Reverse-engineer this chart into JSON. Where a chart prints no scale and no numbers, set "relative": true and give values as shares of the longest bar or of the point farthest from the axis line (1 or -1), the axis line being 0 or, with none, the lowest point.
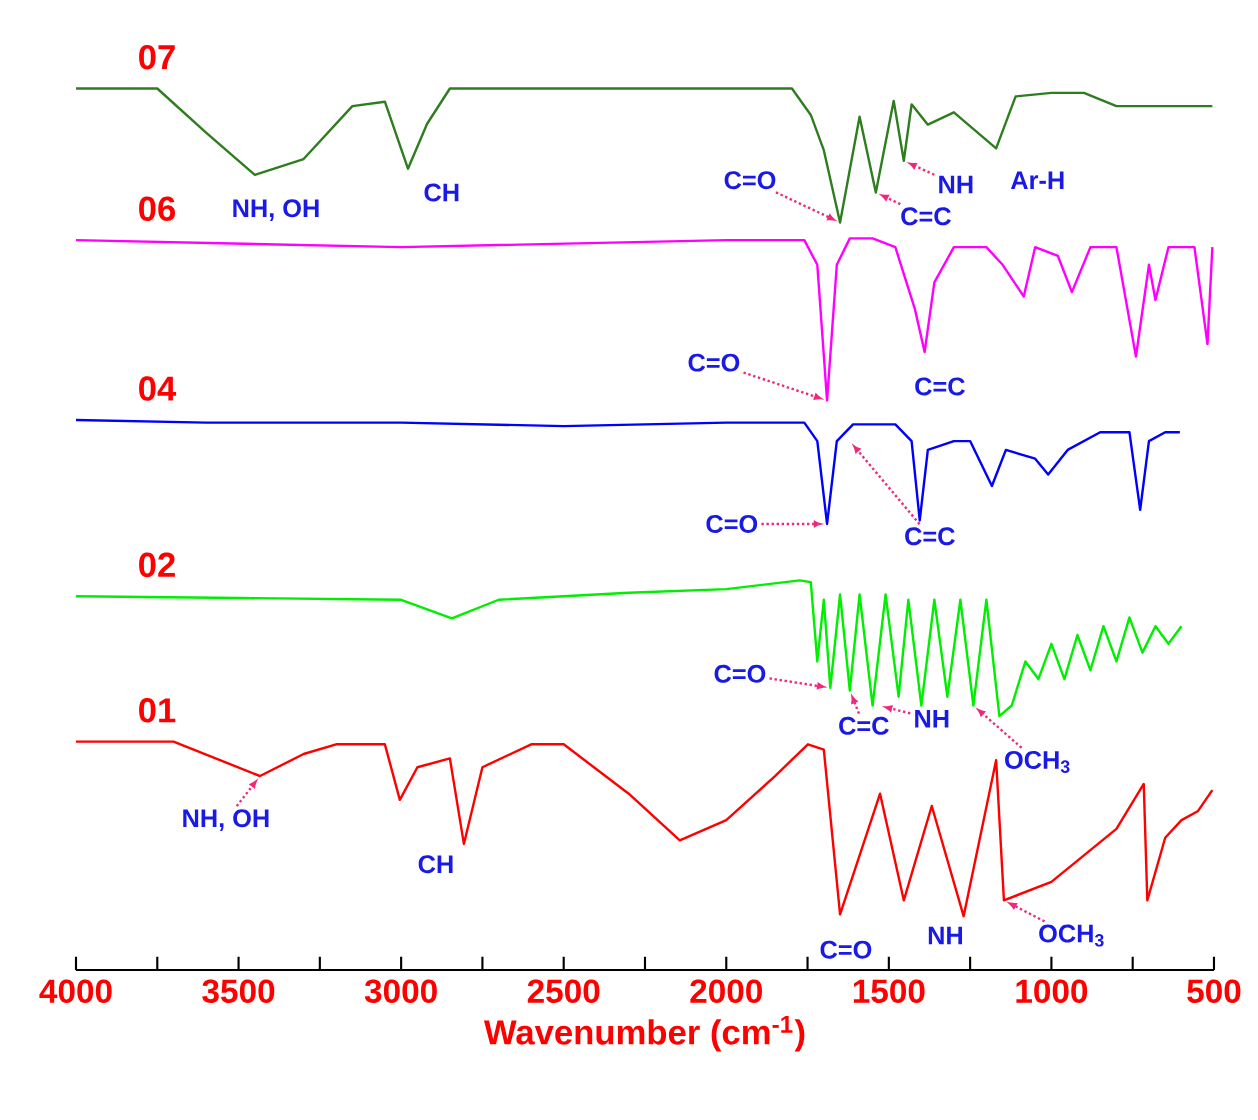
{
  "chart_data": {
    "type": "line",
    "relative": true,
    "xlabel": "Wavenumber (cm$^{-1}$)",
    "xlim": [
      4000,
      500
    ],
    "xticks": [
      4000,
      {
        "value": 3750,
        "label": null
      },
      3500,
      {
        "value": 3250,
        "label": null
      },
      3000,
      {
        "value": 2750,
        "label": null
      },
      2500,
      {
        "value": 2250,
        "label": null
      },
      2000,
      {
        "value": 1750,
        "label": null
      },
      1500,
      {
        "value": 1250,
        "label": null
      },
      1000,
      {
        "value": 750,
        "label": null
      },
      500
    ],
    "series": [
      {
        "name": "07",
        "color": "#2e7d1e",
        "x": [
          4000,
          3750,
          3600,
          3450,
          3300,
          3150,
          3050,
          2979,
          2920,
          2850,
          2500,
          2000,
          1798,
          1740,
          1700,
          1650,
          1590,
          1540,
          1485,
          1454,
          1430,
          1380,
          1300,
          1170,
          1110,
          1000,
          900,
          800,
          740,
          600,
          505
        ],
        "values": [
          1.0,
          1.0,
          0.95,
          0.902,
          0.92,
          0.98,
          0.985,
          0.909,
          0.96,
          1.0,
          1.0,
          1.0,
          1.0,
          0.97,
          0.93,
          0.848,
          0.968,
          0.882,
          0.986,
          0.918,
          0.982,
          0.959,
          0.973,
          0.932,
          0.991,
          0.995,
          0.995,
          0.98,
          0.98,
          0.98,
          0.98
        ]
      },
      {
        "name": "06",
        "color": "#ff00ff",
        "x": [
          4000,
          3000,
          2000,
          1760,
          1720,
          1690,
          1660,
          1620,
          1550,
          1480,
          1420,
          1390,
          1360,
          1300,
          1200,
          1150,
          1085,
          1050,
          980,
          937,
          880,
          800,
          740,
          700,
          680,
          640,
          560,
          520,
          505
        ],
        "values": [
          0.828,
          0.82,
          0.828,
          0.828,
          0.8,
          0.646,
          0.8,
          0.83,
          0.83,
          0.82,
          0.75,
          0.701,
          0.78,
          0.82,
          0.82,
          0.8,
          0.764,
          0.82,
          0.81,
          0.769,
          0.82,
          0.82,
          0.696,
          0.8,
          0.76,
          0.82,
          0.82,
          0.71,
          0.82
        ]
      },
      {
        "name": "04",
        "color": "#0000ff",
        "x": [
          4000,
          3600,
          3000,
          2500,
          2000,
          1760,
          1720,
          1690,
          1660,
          1610,
          1480,
          1430,
          1405,
          1380,
          1300,
          1250,
          1183,
          1140,
          1050,
          1010,
          950,
          850,
          760,
          727,
          700,
          650,
          605
        ],
        "values": [
          0.624,
          0.621,
          0.621,
          0.617,
          0.621,
          0.621,
          0.6,
          0.506,
          0.6,
          0.619,
          0.619,
          0.6,
          0.51,
          0.59,
          0.6,
          0.6,
          0.549,
          0.59,
          0.58,
          0.562,
          0.59,
          0.61,
          0.61,
          0.522,
          0.6,
          0.61,
          0.61
        ]
      },
      {
        "name": "02",
        "color": "#00ee00",
        "x": [
          4000,
          3500,
          3000,
          2844,
          2700,
          2300,
          2000,
          1774,
          1740,
          1720,
          1700,
          1680,
          1650,
          1620,
          1590,
          1550,
          1510,
          1470,
          1440,
          1400,
          1360,
          1320,
          1280,
          1240,
          1200,
          1160,
          1122,
          1080,
          1040,
          1000,
          960,
          920,
          880,
          840,
          800,
          760,
          720,
          680,
          640,
          600
        ],
        "values": [
          0.424,
          0.422,
          0.42,
          0.399,
          0.42,
          0.428,
          0.432,
          0.442,
          0.44,
          0.35,
          0.42,
          0.32,
          0.426,
          0.317,
          0.426,
          0.3,
          0.426,
          0.31,
          0.42,
          0.3,
          0.42,
          0.31,
          0.42,
          0.3,
          0.42,
          0.288,
          0.3,
          0.35,
          0.33,
          0.37,
          0.33,
          0.38,
          0.34,
          0.39,
          0.35,
          0.4,
          0.36,
          0.39,
          0.37,
          0.39
        ]
      },
      {
        "name": "01",
        "color": "#ff0000",
        "x": [
          4000,
          3700,
          3434,
          3300,
          3200,
          3050,
          3004,
          2950,
          2850,
          2807,
          2750,
          2600,
          2500,
          2300,
          2143,
          2000,
          1850,
          1749,
          1700,
          1650,
          1527,
          1454,
          1368,
          1270,
          1170,
          1146,
          1000,
          900,
          800,
          716,
          705,
          650,
          600,
          550,
          505
        ],
        "values": [
          0.259,
          0.259,
          0.22,
          0.245,
          0.256,
          0.256,
          0.193,
          0.23,
          0.24,
          0.143,
          0.23,
          0.256,
          0.256,
          0.2,
          0.147,
          0.17,
          0.22,
          0.256,
          0.25,
          0.063,
          0.2,
          0.079,
          0.186,
          0.061,
          0.238,
          0.079,
          0.1,
          0.13,
          0.16,
          0.211,
          0.079,
          0.15,
          0.17,
          0.18,
          0.204
        ]
      }
    ],
    "annotations": [
      "NH, OH",
      "CH",
      {
        "text": "C=O",
        "x": 1650,
        "y": 0.848
      },
      {
        "text": "C=C",
        "x": 1540,
        "y": 0.882
      },
      {
        "text": "NH",
        "x": 1454,
        "y": 0.918
      },
      {
        "text": "Ar-H",
        "x": 1170,
        "y": 0.932
      },
      {
        "text": "C=O",
        "x": 1690,
        "y": 0.646
      },
      {
        "text": "C=C",
        "x": 1390,
        "y": 0.701
      },
      {
        "text": "C=O",
        "x": 1690,
        "y": 0.506
      },
      {
        "text": "C=C",
        "x": 1620,
        "y": 0.6
      },
      {
        "text": "C=O",
        "x": 1680,
        "y": 0.32
      },
      {
        "text": "C=C",
        "x": 1620,
        "y": 0.317
      },
      {
        "text": "NH",
        "x": 1530,
        "y": 0.3
      },
      {
        "text": "OCH$_{3}$",
        "x": 1240,
        "y": 0.3
      },
      {
        "text": "NH, OH",
        "x": 3434,
        "y": 0.22
      },
      {
        "text": "CH",
        "x": 2807,
        "y": 0.143
      },
      {
        "text": "C=O",
        "x": 1650,
        "y": 0.063
      },
      {
        "text": "NH",
        "x": 1454,
        "y": 0.079
      },
      {
        "text": "OCH$_{3}$",
        "x": 1146,
        "y": 0.079
      }
    ]
  }
}
